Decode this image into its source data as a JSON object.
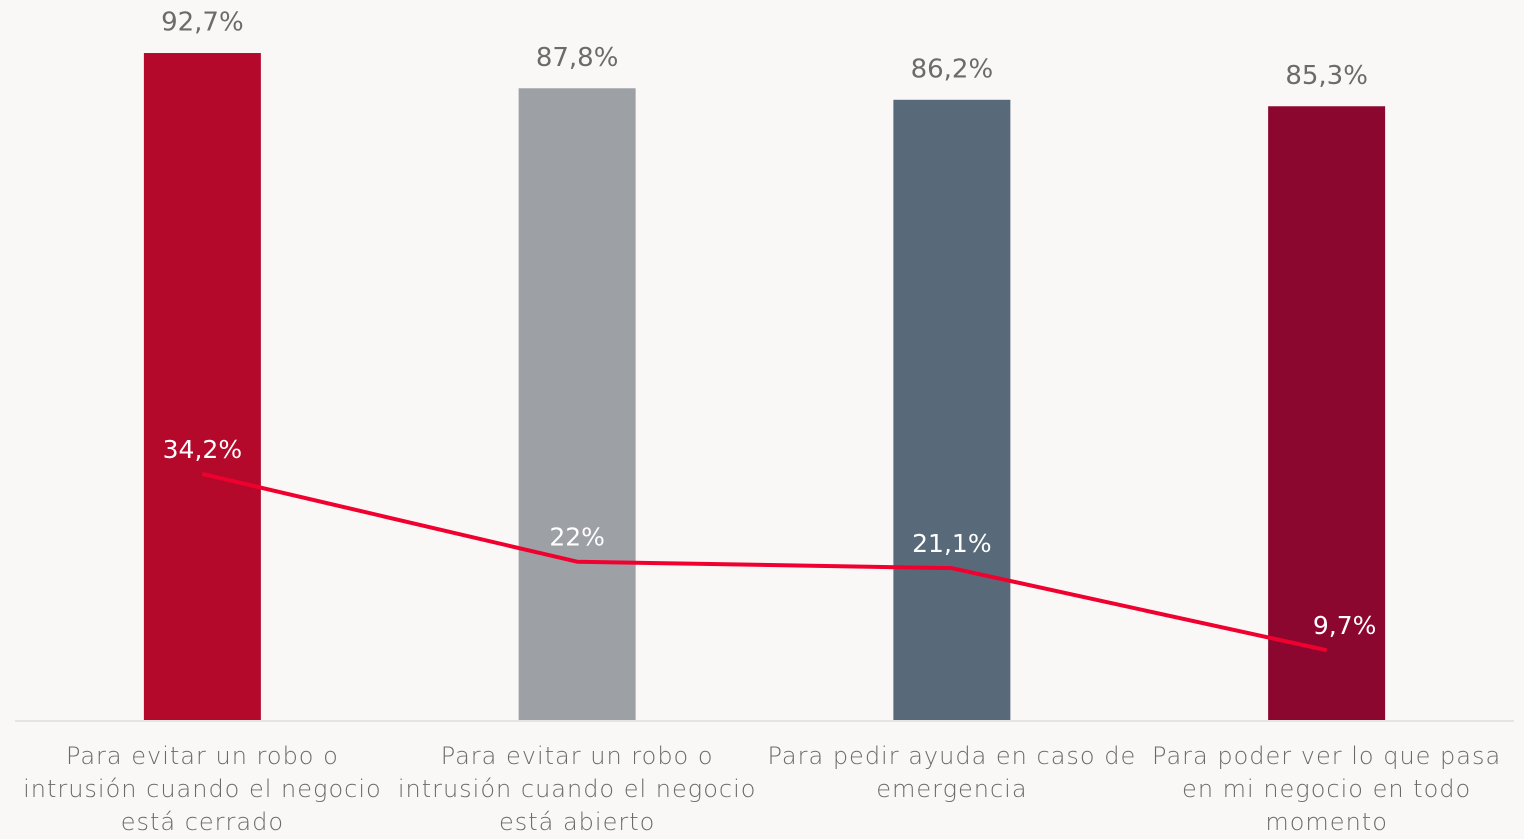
{
  "chart_data": {
    "type": "combo",
    "categories": [
      "Para evitar un robo o intrusión cuando el negocio está cerrado",
      "Para evitar un robo o intrusión cuando el negocio está abierto",
      "Para pedir ayuda en caso de emergencia",
      "Para poder ver lo que pasa en mi negocio en todo momento"
    ],
    "ylim": [
      0,
      100
    ],
    "series": [
      {
        "type": "bar",
        "colors": [
          "#b5092c",
          "#9da0a5",
          "#586a79",
          "#8c0730"
        ],
        "values": [
          92.7,
          87.8,
          86.2,
          85.3
        ],
        "value_labels": [
          "92,7%",
          "87,8%",
          "86,2%",
          "85,3%"
        ]
      },
      {
        "type": "line",
        "color": "#f0002f",
        "values": [
          34.2,
          22,
          21.1,
          9.7
        ],
        "value_labels": [
          "34,2%",
          "22%",
          "21,1%",
          "9,7%"
        ]
      }
    ]
  }
}
